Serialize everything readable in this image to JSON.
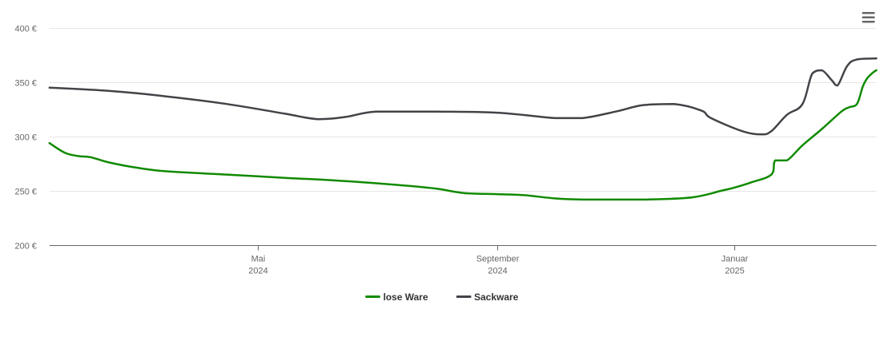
{
  "menu": {
    "icon": "hamburger-menu-icon"
  },
  "chart_data": {
    "type": "line",
    "grid": "horizontal",
    "legend_position": "bottom-center",
    "y_axis": {
      "min": 200,
      "max": 400,
      "ticks": [
        {
          "value": 200,
          "label": "200 €"
        },
        {
          "value": 250,
          "label": "250 €"
        },
        {
          "value": 300,
          "label": "300 €"
        },
        {
          "value": 350,
          "label": "350 €"
        },
        {
          "value": 400,
          "label": "400 €"
        }
      ]
    },
    "x_axis": {
      "min": "2024-01-15",
      "max": "2025-03-15",
      "ticks": [
        {
          "date": "2024-05-01",
          "month": "Mai",
          "year": "2024"
        },
        {
          "date": "2024-09-01",
          "month": "September",
          "year": "2024"
        },
        {
          "date": "2025-01-01",
          "month": "Januar",
          "year": "2025"
        }
      ]
    },
    "series": [
      {
        "name": "lose Ware",
        "color": "#108a00",
        "points": [
          {
            "x": "2024-01-15",
            "y": 294
          },
          {
            "x": "2024-01-23",
            "y": 285
          },
          {
            "x": "2024-01-30",
            "y": 282
          },
          {
            "x": "2024-02-05",
            "y": 281
          },
          {
            "x": "2024-02-15",
            "y": 276
          },
          {
            "x": "2024-03-01",
            "y": 271
          },
          {
            "x": "2024-03-15",
            "y": 268
          },
          {
            "x": "2024-04-15",
            "y": 265
          },
          {
            "x": "2024-05-15",
            "y": 262
          },
          {
            "x": "2024-06-15",
            "y": 259
          },
          {
            "x": "2024-07-15",
            "y": 255
          },
          {
            "x": "2024-08-01",
            "y": 252
          },
          {
            "x": "2024-08-15",
            "y": 248
          },
          {
            "x": "2024-09-01",
            "y": 247
          },
          {
            "x": "2024-09-15",
            "y": 246
          },
          {
            "x": "2024-10-01",
            "y": 243
          },
          {
            "x": "2024-10-15",
            "y": 242
          },
          {
            "x": "2024-11-15",
            "y": 242
          },
          {
            "x": "2024-12-10",
            "y": 244
          },
          {
            "x": "2024-12-25",
            "y": 250
          },
          {
            "x": "2025-01-01",
            "y": 253
          },
          {
            "x": "2025-01-10",
            "y": 258
          },
          {
            "x": "2025-01-20",
            "y": 265
          },
          {
            "x": "2025-01-22",
            "y": 278
          },
          {
            "x": "2025-01-28",
            "y": 278
          },
          {
            "x": "2025-02-05",
            "y": 292
          },
          {
            "x": "2025-02-15",
            "y": 307
          },
          {
            "x": "2025-02-25",
            "y": 323
          },
          {
            "x": "2025-03-01",
            "y": 327
          },
          {
            "x": "2025-03-05",
            "y": 330
          },
          {
            "x": "2025-03-08",
            "y": 346
          },
          {
            "x": "2025-03-10",
            "y": 353
          },
          {
            "x": "2025-03-12",
            "y": 357
          },
          {
            "x": "2025-03-14",
            "y": 360
          },
          {
            "x": "2025-03-15",
            "y": 361
          }
        ]
      },
      {
        "name": "Sackware",
        "color": "#434348",
        "points": [
          {
            "x": "2024-01-15",
            "y": 345
          },
          {
            "x": "2024-02-15",
            "y": 342
          },
          {
            "x": "2024-03-15",
            "y": 337
          },
          {
            "x": "2024-04-15",
            "y": 330
          },
          {
            "x": "2024-05-15",
            "y": 321
          },
          {
            "x": "2024-06-01",
            "y": 316
          },
          {
            "x": "2024-06-15",
            "y": 318
          },
          {
            "x": "2024-07-01",
            "y": 323
          },
          {
            "x": "2024-08-01",
            "y": 323
          },
          {
            "x": "2024-09-01",
            "y": 322
          },
          {
            "x": "2024-10-01",
            "y": 317
          },
          {
            "x": "2024-10-15",
            "y": 317
          },
          {
            "x": "2024-11-01",
            "y": 323
          },
          {
            "x": "2024-11-15",
            "y": 329
          },
          {
            "x": "2024-12-01",
            "y": 330
          },
          {
            "x": "2024-12-15",
            "y": 324
          },
          {
            "x": "2024-12-20",
            "y": 317
          },
          {
            "x": "2025-01-05",
            "y": 305
          },
          {
            "x": "2025-01-15",
            "y": 302
          },
          {
            "x": "2025-01-20",
            "y": 305
          },
          {
            "x": "2025-01-28",
            "y": 320
          },
          {
            "x": "2025-02-05",
            "y": 330
          },
          {
            "x": "2025-02-10",
            "y": 358
          },
          {
            "x": "2025-02-15",
            "y": 361
          },
          {
            "x": "2025-02-20",
            "y": 352
          },
          {
            "x": "2025-02-23",
            "y": 347
          },
          {
            "x": "2025-02-28",
            "y": 365
          },
          {
            "x": "2025-03-05",
            "y": 371
          },
          {
            "x": "2025-03-15",
            "y": 372
          }
        ]
      }
    ]
  }
}
